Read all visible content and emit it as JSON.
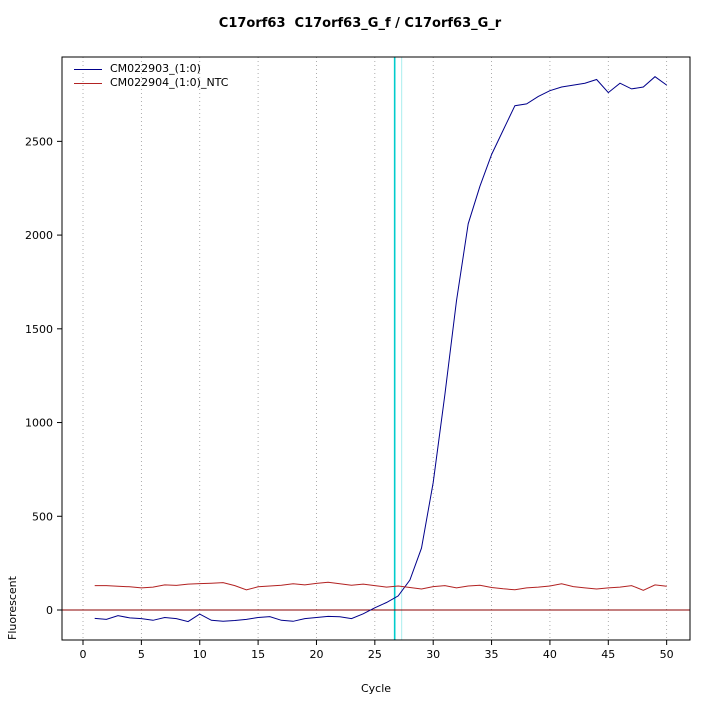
{
  "chart_data": {
    "type": "line",
    "title": "C17orf63  C17orf63_G_f / C17orf63_G_r",
    "xlabel": "Cycle",
    "ylabel": "Fluorescent",
    "xlim": [
      -1.8,
      52
    ],
    "ylim": [
      -160,
      2950
    ],
    "xticks": [
      0,
      5,
      10,
      15,
      20,
      25,
      30,
      35,
      40,
      45,
      50
    ],
    "yticks": [
      0,
      500,
      1000,
      1500,
      2000,
      2500
    ],
    "grid": "vertical-dotted",
    "legend_position": "top-left",
    "threshold_line_y": 0,
    "ct_lines": [
      {
        "x": 26.7,
        "color": "#00cccc",
        "width": 1.6
      },
      {
        "x": 27.3,
        "color": "#aaeeee",
        "width": 1
      }
    ],
    "colors": {
      "grid": "#999999",
      "threshold": "#8b0000",
      "box": "#000000"
    },
    "x": [
      1,
      2,
      3,
      4,
      5,
      6,
      7,
      8,
      9,
      10,
      11,
      12,
      13,
      14,
      15,
      16,
      17,
      18,
      19,
      20,
      21,
      22,
      23,
      24,
      25,
      26,
      27,
      28,
      29,
      30,
      31,
      32,
      33,
      34,
      35,
      36,
      37,
      38,
      39,
      40,
      41,
      42,
      43,
      44,
      45,
      46,
      47,
      48,
      49,
      50
    ],
    "series": [
      {
        "name": "CM022903_(1:0)",
        "color": "#00008b",
        "values": [
          -45,
          -50,
          -30,
          -42,
          -46,
          -55,
          -40,
          -46,
          -62,
          -22,
          -55,
          -60,
          -56,
          -50,
          -40,
          -35,
          -55,
          -60,
          -46,
          -40,
          -34,
          -36,
          -46,
          -20,
          12,
          40,
          75,
          160,
          330,
          680,
          1150,
          1650,
          2060,
          2260,
          2430,
          2560,
          2690,
          2700,
          2740,
          2770,
          2790,
          2800,
          2810,
          2830,
          2760,
          2810,
          2780,
          2790,
          2845,
          2800
        ]
      },
      {
        "name": "CM022904_(1:0)_NTC",
        "color": "#b22222",
        "values": [
          130,
          130,
          127,
          124,
          118,
          122,
          134,
          131,
          138,
          141,
          143,
          146,
          130,
          108,
          124,
          128,
          132,
          140,
          134,
          142,
          148,
          140,
          132,
          138,
          130,
          122,
          128,
          120,
          112,
          125,
          130,
          118,
          128,
          132,
          120,
          113,
          108,
          118,
          122,
          128,
          140,
          125,
          118,
          112,
          118,
          122,
          130,
          105,
          134,
          127
        ]
      }
    ]
  }
}
